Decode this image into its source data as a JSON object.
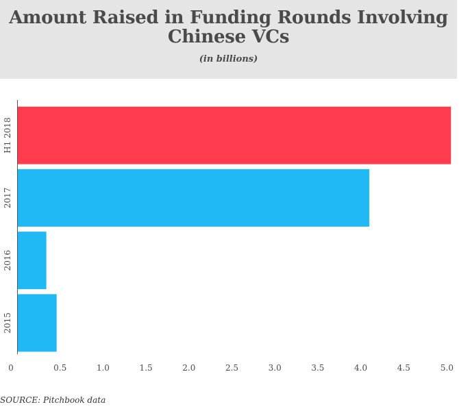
{
  "header": {
    "title_line1": "Amount Raised in Funding Rounds Involving",
    "title_line2": "Chinese VCs",
    "subtitle": "(in billions)"
  },
  "chart_data": {
    "type": "bar",
    "orientation": "horizontal",
    "categories": [
      "H1 2018",
      "2017",
      "2016",
      "2015"
    ],
    "values": [
      5.05,
      4.1,
      0.34,
      0.46
    ],
    "colors": [
      "#ff3b4e",
      "#21b9f5",
      "#21b9f5",
      "#21b9f5"
    ],
    "xlim": [
      0,
      5.0
    ],
    "xticks": [
      "0",
      "0.5",
      "1.0",
      "1.5",
      "2.0",
      "2.5",
      "3.0",
      "3.5",
      "4.0",
      "4.5",
      "5.0"
    ],
    "xtick_values": [
      0,
      0.5,
      1.0,
      1.5,
      2.0,
      2.5,
      3.0,
      3.5,
      4.0,
      4.5,
      5.0
    ],
    "grid": false
  },
  "footer": {
    "source": "SOURCE: Pitchbook data"
  }
}
